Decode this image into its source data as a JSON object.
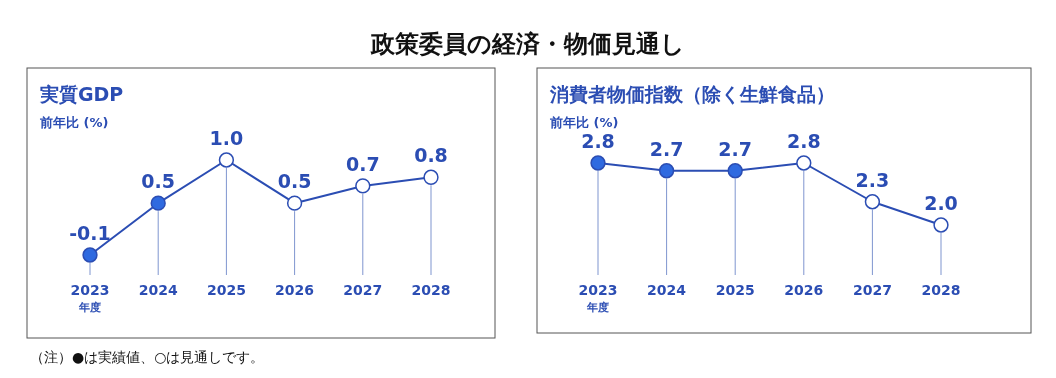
{
  "chart_data": [
    {
      "type": "line",
      "title": "実質GDP",
      "ylabel": "前年比 (%)",
      "xlabel": "年度",
      "categories": [
        "2023",
        "2024",
        "2025",
        "2026",
        "2027",
        "2028"
      ],
      "series": [
        {
          "color": "#2b4db3",
          "colors": [
            "#2f6ae0",
            "#2f6ae0",
            "#ffffff",
            "#ffffff",
            "#ffffff",
            "#ffffff"
          ],
          "values": [
            -0.1,
            0.5,
            1.0,
            0.5,
            0.7,
            0.8
          ],
          "value_labels": [
            "-0.1",
            "0.5",
            "1.0",
            "0.5",
            "0.7",
            "0.8"
          ]
        }
      ],
      "marker": "circle",
      "grid": "x",
      "annotations": [
        "政策委員の経済・物価見通し",
        "（注）●は実績値、○は見通しです。"
      ]
    },
    {
      "type": "line",
      "title": "消費者物価指数（除く生鮮食品）",
      "ylabel": "前年比 (%)",
      "xlabel": "年度",
      "categories": [
        "2023",
        "2024",
        "2025",
        "2026",
        "2027",
        "2028"
      ],
      "series": [
        {
          "color": "#2b4db3",
          "colors": [
            "#2f6ae0",
            "#2f6ae0",
            "#2f6ae0",
            "#ffffff",
            "#ffffff",
            "#ffffff"
          ],
          "values": [
            2.8,
            2.7,
            2.7,
            2.8,
            2.3,
            2.0
          ],
          "value_labels": [
            "2.8",
            "2.7",
            "2.7",
            "2.8",
            "2.3",
            "2.0"
          ]
        }
      ],
      "marker": "circle",
      "grid": "x"
    }
  ]
}
